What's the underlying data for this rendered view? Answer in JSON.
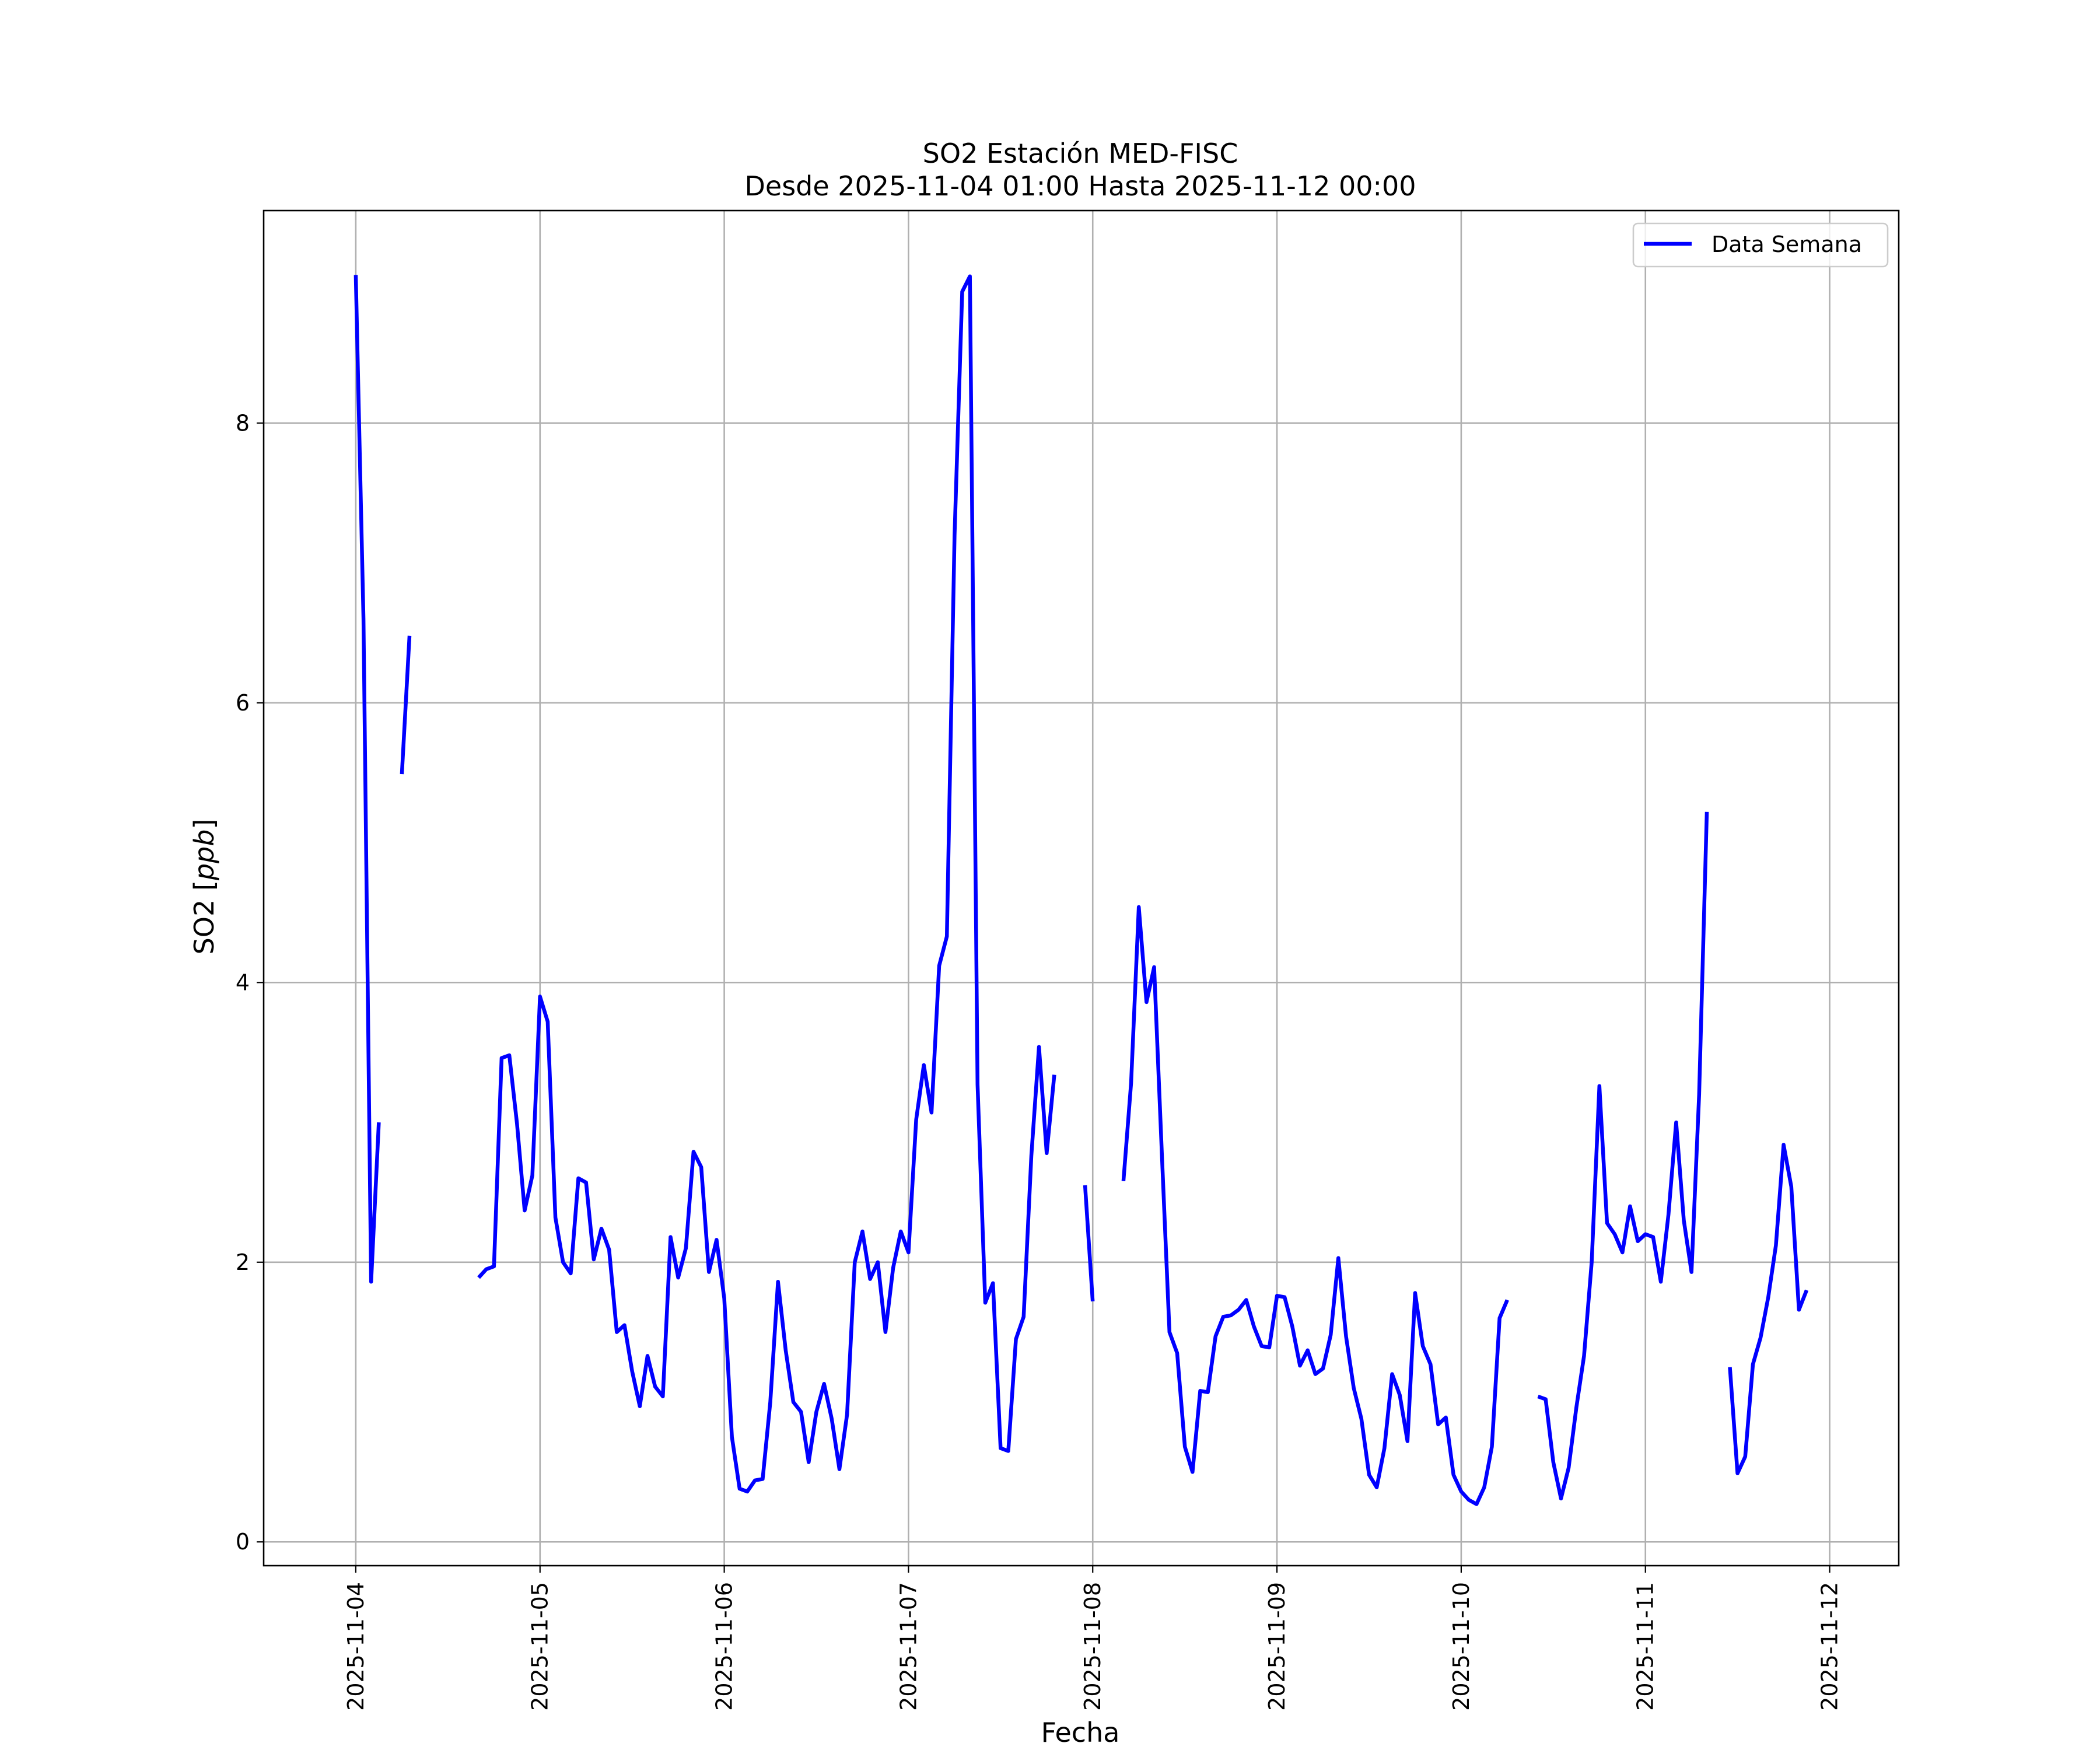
{
  "chart_data": {
    "type": "line",
    "title": "SO2 Estación MED-FISC",
    "subtitle": "Desde 2025-11-04 01:00 Hasta 2025-11-12 00:00",
    "xlabel": "Fecha",
    "ylabel": "SO2 [ppb]",
    "ylabel_parts": [
      "SO2 [",
      "ppb",
      "]"
    ],
    "x_ticks": [
      "2025-11-04",
      "2025-11-05",
      "2025-11-06",
      "2025-11-07",
      "2025-11-08",
      "2025-11-09",
      "2025-11-10",
      "2025-11-11",
      "2025-11-12"
    ],
    "y_ticks": [
      0,
      2,
      4,
      6,
      8
    ],
    "xlim": [
      "2025-11-03 12:00",
      "2025-11-12 09:00"
    ],
    "ylim": [
      -0.17,
      9.52
    ],
    "grid": true,
    "legend_position": "top-right",
    "colors": {
      "series": "#0000ff",
      "grid": "#b0b0b0",
      "axes": "#000000"
    },
    "series": [
      {
        "name": "Data Semana",
        "segments": [
          [
            [
              "2025-11-04 00:00",
              9.06
            ],
            [
              "2025-11-04 01:00",
              6.6
            ],
            [
              "2025-11-04 02:00",
              1.86
            ],
            [
              "2025-11-04 03:00",
              3.0
            ]
          ],
          [
            [
              "2025-11-04 06:00",
              5.49
            ],
            [
              "2025-11-04 07:00",
              6.48
            ]
          ],
          [
            [
              "2025-11-04 16:00",
              1.89
            ],
            [
              "2025-11-04 17:00",
              1.95
            ],
            [
              "2025-11-04 18:00",
              1.97
            ],
            [
              "2025-11-04 19:00",
              3.46
            ],
            [
              "2025-11-04 20:00",
              3.48
            ],
            [
              "2025-11-04 21:00",
              2.99
            ],
            [
              "2025-11-04 22:00",
              2.37
            ],
            [
              "2025-11-04 23:00",
              2.62
            ],
            [
              "2025-11-05 00:00",
              3.9
            ],
            [
              "2025-11-05 01:00",
              3.72
            ],
            [
              "2025-11-05 02:00",
              2.32
            ],
            [
              "2025-11-05 03:00",
              2.0
            ],
            [
              "2025-11-05 04:00",
              1.92
            ],
            [
              "2025-11-05 05:00",
              2.6
            ],
            [
              "2025-11-05 06:00",
              2.57
            ],
            [
              "2025-11-05 07:00",
              2.02
            ],
            [
              "2025-11-05 08:00",
              2.24
            ],
            [
              "2025-11-05 09:00",
              2.09
            ],
            [
              "2025-11-05 10:00",
              1.5
            ],
            [
              "2025-11-05 11:00",
              1.55
            ],
            [
              "2025-11-05 12:00",
              1.22
            ],
            [
              "2025-11-05 13:00",
              0.97
            ],
            [
              "2025-11-05 14:00",
              1.33
            ],
            [
              "2025-11-05 15:00",
              1.11
            ],
            [
              "2025-11-05 16:00",
              1.04
            ],
            [
              "2025-11-05 17:00",
              2.18
            ],
            [
              "2025-11-05 18:00",
              1.89
            ],
            [
              "2025-11-05 19:00",
              2.1
            ],
            [
              "2025-11-05 20:00",
              2.79
            ],
            [
              "2025-11-05 21:00",
              2.68
            ],
            [
              "2025-11-05 22:00",
              1.93
            ],
            [
              "2025-11-05 23:00",
              2.16
            ],
            [
              "2025-11-06 00:00",
              1.74
            ],
            [
              "2025-11-06 01:00",
              0.75
            ],
            [
              "2025-11-06 02:00",
              0.38
            ],
            [
              "2025-11-06 03:00",
              0.36
            ],
            [
              "2025-11-06 04:00",
              0.44
            ],
            [
              "2025-11-06 05:00",
              0.45
            ],
            [
              "2025-11-06 06:00",
              1.0
            ],
            [
              "2025-11-06 07:00",
              1.86
            ],
            [
              "2025-11-06 08:00",
              1.37
            ],
            [
              "2025-11-06 09:00",
              1.0
            ],
            [
              "2025-11-06 10:00",
              0.93
            ],
            [
              "2025-11-06 11:00",
              0.57
            ],
            [
              "2025-11-06 12:00",
              0.93
            ],
            [
              "2025-11-06 13:00",
              1.13
            ],
            [
              "2025-11-06 14:00",
              0.88
            ],
            [
              "2025-11-06 15:00",
              0.52
            ],
            [
              "2025-11-06 16:00",
              0.91
            ],
            [
              "2025-11-06 17:00",
              2.0
            ],
            [
              "2025-11-06 18:00",
              2.22
            ],
            [
              "2025-11-06 19:00",
              1.88
            ],
            [
              "2025-11-06 20:00",
              2.0
            ],
            [
              "2025-11-06 21:00",
              1.5
            ],
            [
              "2025-11-06 22:00",
              1.96
            ],
            [
              "2025-11-06 23:00",
              2.22
            ],
            [
              "2025-11-07 00:00",
              2.07
            ],
            [
              "2025-11-07 01:00",
              3.02
            ],
            [
              "2025-11-07 02:00",
              3.41
            ],
            [
              "2025-11-07 03:00",
              3.07
            ],
            [
              "2025-11-07 04:00",
              4.12
            ],
            [
              "2025-11-07 05:00",
              4.33
            ],
            [
              "2025-11-07 06:00",
              7.2
            ],
            [
              "2025-11-07 07:00",
              8.94
            ],
            [
              "2025-11-07 08:00",
              9.05
            ],
            [
              "2025-11-07 09:00",
              3.27
            ],
            [
              "2025-11-07 10:00",
              1.71
            ],
            [
              "2025-11-07 11:00",
              1.85
            ],
            [
              "2025-11-07 12:00",
              0.67
            ],
            [
              "2025-11-07 13:00",
              0.65
            ],
            [
              "2025-11-07 14:00",
              1.45
            ],
            [
              "2025-11-07 15:00",
              1.61
            ],
            [
              "2025-11-07 16:00",
              2.76
            ],
            [
              "2025-11-07 17:00",
              3.54
            ],
            [
              "2025-11-07 18:00",
              2.78
            ],
            [
              "2025-11-07 19:00",
              3.34
            ]
          ],
          [
            [
              "2025-11-07 23:00",
              2.55
            ],
            [
              "2025-11-08 00:00",
              1.72
            ]
          ],
          [
            [
              "2025-11-08 04:00",
              2.58
            ],
            [
              "2025-11-08 05:00",
              3.28
            ],
            [
              "2025-11-08 06:00",
              4.54
            ],
            [
              "2025-11-08 07:00",
              3.86
            ],
            [
              "2025-11-08 08:00",
              4.11
            ],
            [
              "2025-11-08 09:00",
              2.78
            ],
            [
              "2025-11-08 10:00",
              1.5
            ],
            [
              "2025-11-08 11:00",
              1.35
            ],
            [
              "2025-11-08 12:00",
              0.68
            ],
            [
              "2025-11-08 13:00",
              0.5
            ],
            [
              "2025-11-08 14:00",
              1.08
            ],
            [
              "2025-11-08 15:00",
              1.07
            ],
            [
              "2025-11-08 16:00",
              1.47
            ],
            [
              "2025-11-08 17:00",
              1.61
            ],
            [
              "2025-11-08 18:00",
              1.62
            ],
            [
              "2025-11-08 19:00",
              1.66
            ],
            [
              "2025-11-08 20:00",
              1.73
            ],
            [
              "2025-11-08 21:00",
              1.54
            ],
            [
              "2025-11-08 22:00",
              1.4
            ],
            [
              "2025-11-08 23:00",
              1.39
            ],
            [
              "2025-11-09 00:00",
              1.76
            ],
            [
              "2025-11-09 01:00",
              1.75
            ],
            [
              "2025-11-09 02:00",
              1.54
            ],
            [
              "2025-11-09 03:00",
              1.26
            ],
            [
              "2025-11-09 04:00",
              1.37
            ],
            [
              "2025-11-09 05:00",
              1.2
            ],
            [
              "2025-11-09 06:00",
              1.24
            ],
            [
              "2025-11-09 07:00",
              1.48
            ],
            [
              "2025-11-09 08:00",
              2.03
            ],
            [
              "2025-11-09 09:00",
              1.47
            ],
            [
              "2025-11-09 10:00",
              1.1
            ],
            [
              "2025-11-09 11:00",
              0.88
            ],
            [
              "2025-11-09 12:00",
              0.48
            ],
            [
              "2025-11-09 13:00",
              0.39
            ],
            [
              "2025-11-09 14:00",
              0.67
            ],
            [
              "2025-11-09 15:00",
              1.2
            ],
            [
              "2025-11-09 16:00",
              1.05
            ],
            [
              "2025-11-09 17:00",
              0.72
            ],
            [
              "2025-11-09 18:00",
              1.78
            ],
            [
              "2025-11-09 19:00",
              1.4
            ],
            [
              "2025-11-09 20:00",
              1.27
            ],
            [
              "2025-11-09 21:00",
              0.84
            ],
            [
              "2025-11-09 22:00",
              0.89
            ],
            [
              "2025-11-09 23:00",
              0.48
            ],
            [
              "2025-11-10 00:00",
              0.36
            ],
            [
              "2025-11-10 01:00",
              0.3
            ],
            [
              "2025-11-10 02:00",
              0.27
            ],
            [
              "2025-11-10 03:00",
              0.39
            ],
            [
              "2025-11-10 04:00",
              0.68
            ],
            [
              "2025-11-10 05:00",
              1.6
            ],
            [
              "2025-11-10 06:00",
              1.73
            ]
          ],
          [
            [
              "2025-11-10 10:00",
              1.04
            ],
            [
              "2025-11-10 11:00",
              1.02
            ],
            [
              "2025-11-10 12:00",
              0.57
            ],
            [
              "2025-11-10 13:00",
              0.31
            ],
            [
              "2025-11-10 14:00",
              0.53
            ],
            [
              "2025-11-10 15:00",
              0.96
            ],
            [
              "2025-11-10 16:00",
              1.33
            ],
            [
              "2025-11-10 17:00",
              2.0
            ],
            [
              "2025-11-10 18:00",
              3.26
            ],
            [
              "2025-11-10 19:00",
              2.28
            ],
            [
              "2025-11-10 20:00",
              2.2
            ],
            [
              "2025-11-10 21:00",
              2.07
            ],
            [
              "2025-11-10 22:00",
              2.4
            ],
            [
              "2025-11-10 23:00",
              2.15
            ],
            [
              "2025-11-11 00:00",
              2.2
            ],
            [
              "2025-11-11 01:00",
              2.18
            ],
            [
              "2025-11-11 02:00",
              1.86
            ],
            [
              "2025-11-11 03:00",
              2.34
            ],
            [
              "2025-11-11 04:00",
              3.0
            ],
            [
              "2025-11-11 05:00",
              2.3
            ],
            [
              "2025-11-11 06:00",
              1.93
            ],
            [
              "2025-11-11 07:00",
              3.2
            ],
            [
              "2025-11-11 08:00",
              5.22
            ]
          ],
          [
            [
              "2025-11-11 11:00",
              1.25
            ],
            [
              "2025-11-11 12:00",
              0.49
            ],
            [
              "2025-11-11 13:00",
              0.61
            ],
            [
              "2025-11-11 14:00",
              1.27
            ],
            [
              "2025-11-11 15:00",
              1.46
            ],
            [
              "2025-11-11 16:00",
              1.75
            ],
            [
              "2025-11-11 17:00",
              2.12
            ],
            [
              "2025-11-11 18:00",
              2.84
            ],
            [
              "2025-11-11 19:00",
              2.54
            ],
            [
              "2025-11-11 20:00",
              1.66
            ],
            [
              "2025-11-11 21:00",
              1.8
            ]
          ]
        ]
      }
    ]
  }
}
